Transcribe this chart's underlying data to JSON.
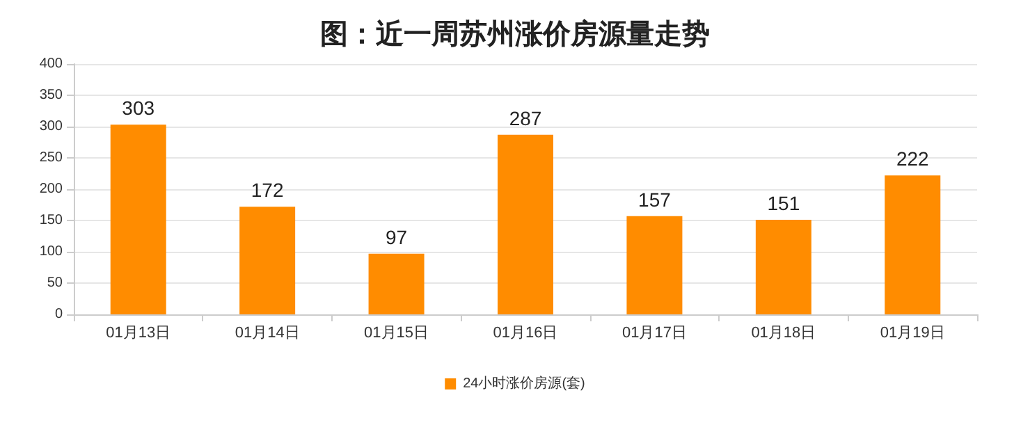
{
  "chart_data": {
    "type": "bar",
    "title": "图：近一周苏州涨价房源量走势",
    "categories": [
      "01月13日",
      "01月14日",
      "01月15日",
      "01月16日",
      "01月17日",
      "01月18日",
      "01月19日"
    ],
    "series": [
      {
        "name": "24小时涨价房源(套)",
        "color": "#ff8c00",
        "values": [
          303,
          172,
          97,
          287,
          157,
          151,
          222
        ]
      }
    ],
    "ylim": [
      0,
      400
    ],
    "yticks": [
      0,
      50,
      100,
      150,
      200,
      250,
      300,
      350,
      400
    ],
    "grid": "y",
    "legend": "bottom",
    "data_labels": true
  }
}
